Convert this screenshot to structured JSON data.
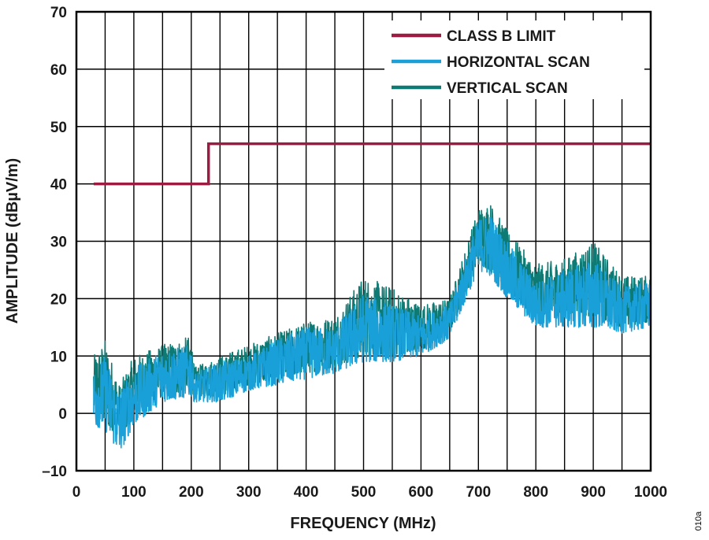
{
  "chart_data": {
    "type": "line",
    "xlabel": "FREQUENCY (MHz)",
    "ylabel": "AMPLITUDE (dBµV/m)",
    "xlim": [
      0,
      1000
    ],
    "ylim": [
      -10,
      70
    ],
    "x_ticks": [
      0,
      100,
      200,
      300,
      400,
      500,
      600,
      700,
      800,
      900,
      1000
    ],
    "y_ticks": [
      -10,
      0,
      10,
      20,
      30,
      40,
      50,
      60,
      70
    ],
    "x_tick_labels": [
      "0",
      "100",
      "200",
      "300",
      "400",
      "500",
      "600",
      "700",
      "800",
      "900",
      "1000"
    ],
    "y_tick_labels": [
      "–10",
      "0",
      "10",
      "20",
      "30",
      "40",
      "50",
      "60",
      "70"
    ],
    "grid": true,
    "legend_position": "top-right",
    "series": [
      {
        "name": "CLASS B LIMIT",
        "color": "#9b1b42",
        "x": [
          30,
          230,
          230,
          1000
        ],
        "y": [
          40,
          40,
          47,
          47
        ]
      },
      {
        "name": "HORIZONTAL SCAN",
        "color": "#1aa0d8",
        "envelope_x": [
          30,
          50,
          75,
          100,
          150,
          200,
          205,
          250,
          300,
          350,
          400,
          450,
          500,
          550,
          600,
          650,
          700,
          720,
          750,
          800,
          850,
          900,
          950,
          1000
        ],
        "envelope_min": [
          -2,
          -3,
          -7,
          -2,
          2,
          3,
          2,
          2,
          4,
          5,
          6,
          7,
          9,
          9,
          10,
          13,
          25,
          24,
          20,
          15,
          15,
          15,
          14,
          15
        ],
        "envelope_max": [
          8,
          10,
          4,
          8,
          11,
          12,
          7,
          9,
          10,
          13,
          15,
          15,
          21,
          19,
          17,
          19,
          34,
          35,
          30,
          23,
          25,
          27,
          22,
          23
        ]
      },
      {
        "name": "VERTICAL SCAN",
        "color": "#0e7a74",
        "envelope_x": [
          30,
          50,
          75,
          100,
          150,
          200,
          205,
          250,
          300,
          350,
          400,
          450,
          500,
          550,
          600,
          650,
          700,
          720,
          750,
          800,
          850,
          900,
          950,
          1000
        ],
        "envelope_min": [
          -1,
          -2,
          -4,
          -1,
          3,
          4,
          3,
          3,
          5,
          6,
          7,
          8,
          10,
          10,
          11,
          14,
          26,
          25,
          21,
          17,
          17,
          17,
          15,
          16
        ],
        "envelope_max": [
          10,
          13,
          5,
          10,
          12,
          13.5,
          8,
          10,
          12,
          14,
          16,
          17,
          24,
          22,
          19,
          20,
          36,
          37,
          32,
          26,
          27,
          30,
          24,
          24
        ]
      }
    ]
  },
  "figure_id": "010a"
}
